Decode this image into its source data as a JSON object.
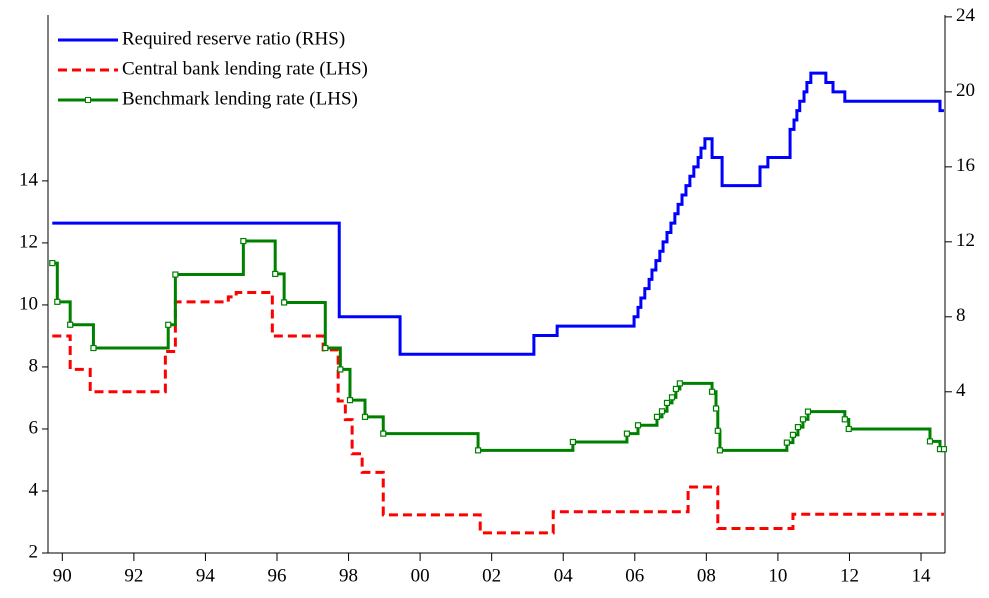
{
  "chart_data": {
    "type": "line",
    "step": true,
    "legend": "upper left",
    "xlim": [
      1989.6,
      2014.67
    ],
    "ylim": [
      2,
      19.35
    ],
    "y2lim": [
      -4.6,
      24.1
    ],
    "xticks": [
      {
        "value": 1990,
        "label": "90"
      },
      {
        "value": 1992,
        "label": "92"
      },
      {
        "value": 1994,
        "label": "94"
      },
      {
        "value": 1996,
        "label": "96"
      },
      {
        "value": 1998,
        "label": "98"
      },
      {
        "value": 2000,
        "label": "00"
      },
      {
        "value": 2002,
        "label": "02"
      },
      {
        "value": 2004,
        "label": "04"
      },
      {
        "value": 2006,
        "label": "06"
      },
      {
        "value": 2008,
        "label": "08"
      },
      {
        "value": 2010,
        "label": "10"
      },
      {
        "value": 2012,
        "label": "12"
      },
      {
        "value": 2014,
        "label": "14"
      }
    ],
    "yticks": [
      2,
      4,
      6,
      8,
      10,
      12,
      14
    ],
    "y2ticks": [
      4,
      8,
      12,
      16,
      20,
      24
    ],
    "series": [
      {
        "name": "Required reserve ratio (RHS)",
        "color": "#0000ff",
        "axis": "y2",
        "x": [
          1989.72,
          1997.74,
          1999.44,
          2003.18,
          2003.83,
          2005.98,
          2006.09,
          2006.17,
          2006.28,
          2006.4,
          2006.48,
          2006.59,
          2006.7,
          2006.79,
          2006.9,
          2007.01,
          2007.12,
          2007.21,
          2007.32,
          2007.43,
          2007.54,
          2007.65,
          2007.77,
          2007.85,
          2007.96,
          2008.16,
          2008.44,
          2009.5,
          2009.72,
          2010.34,
          2010.45,
          2010.53,
          2010.61,
          2010.73,
          2010.81,
          2010.92,
          2011.34,
          2011.54,
          2011.87,
          2014.53,
          2014.64
        ],
        "values": [
          13,
          8,
          6,
          7,
          7.5,
          8,
          8.5,
          9,
          9.5,
          10,
          10.5,
          11,
          11.5,
          12,
          12.5,
          13,
          13.5,
          14,
          14.5,
          15,
          15.5,
          16,
          16.5,
          17,
          17.5,
          16.5,
          15,
          16,
          16.5,
          18,
          18.5,
          19,
          19.5,
          20,
          20.5,
          21,
          20.5,
          20,
          19.5,
          19,
          19
        ]
      },
      {
        "name": "Central bank lending rate (LHS)",
        "color": "#ff0000",
        "dash": true,
        "x": [
          1989.72,
          1990.22,
          1990.78,
          1992.88,
          1993.16,
          1994.64,
          1994.86,
          1995.87,
          1997.29,
          1997.71,
          1997.91,
          1998.1,
          1998.38,
          1998.97,
          2001.68,
          2003.72,
          2007.49,
          2008.32,
          2010.42,
          2014.64
        ],
        "values": [
          9.0,
          7.92,
          7.2,
          8.5,
          10.1,
          10.26,
          10.4,
          9.0,
          8.55,
          6.9,
          6.3,
          5.2,
          4.6,
          3.23,
          2.65,
          3.33,
          4.13,
          2.79,
          3.25,
          3.25
        ]
      },
      {
        "name": "Benchmark lending rate (LHS)",
        "color": "#008000",
        "marker": "square",
        "x": [
          1989.72,
          1989.86,
          1990.22,
          1990.87,
          1992.96,
          1993.16,
          1995.06,
          1995.95,
          1996.2,
          1997.35,
          1997.77,
          1998.04,
          1998.46,
          1998.97,
          2001.62,
          2004.27,
          2005.78,
          2006.09,
          2006.62,
          2006.76,
          2006.9,
          2007.04,
          2007.15,
          2007.26,
          2008.16,
          2008.27,
          2008.32,
          2008.38,
          2010.25,
          2010.42,
          2010.56,
          2010.7,
          2010.84,
          2011.87,
          2011.98,
          2014.25,
          2014.53,
          2014.64
        ],
        "values": [
          11.35,
          10.1,
          9.36,
          8.61,
          9.36,
          10.98,
          12.06,
          11.0,
          10.08,
          8.61,
          7.92,
          6.93,
          6.39,
          5.85,
          5.31,
          5.58,
          5.85,
          6.12,
          6.39,
          6.57,
          6.84,
          7.02,
          7.29,
          7.47,
          7.2,
          6.66,
          5.94,
          5.31,
          5.56,
          5.81,
          6.06,
          6.31,
          6.56,
          6.31,
          6.0,
          5.6,
          5.35,
          5.35
        ]
      }
    ]
  }
}
